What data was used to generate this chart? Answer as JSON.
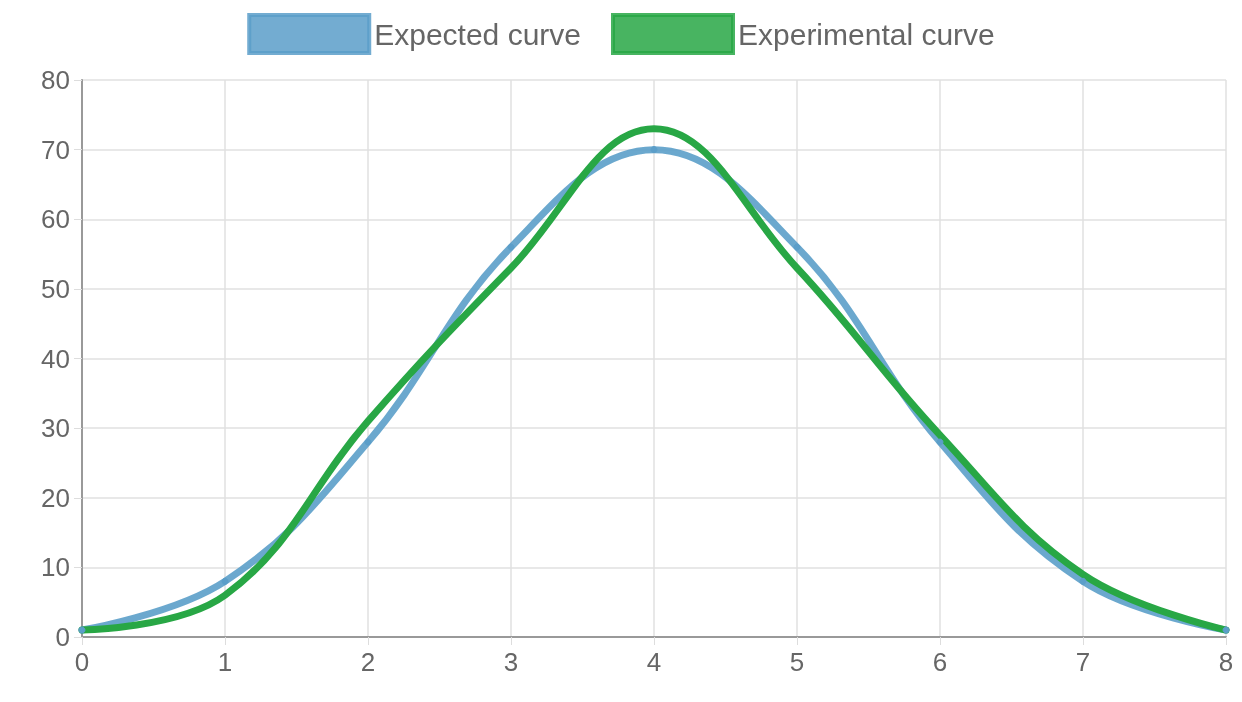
{
  "chart_data": {
    "type": "line",
    "x": [
      0,
      1,
      2,
      3,
      4,
      5,
      6,
      7,
      8
    ],
    "series": [
      {
        "name": "Expected curve",
        "color": "#5b9ec9",
        "values": [
          1,
          8,
          28,
          56,
          70,
          56,
          28,
          8,
          1
        ],
        "marker": "circle"
      },
      {
        "name": "Experimental curve",
        "color": "#28a745",
        "values": [
          1,
          6,
          31,
          53,
          73,
          53,
          29,
          9,
          1
        ],
        "marker": "none"
      }
    ],
    "xlim": [
      0,
      8
    ],
    "xticks": [
      0,
      1,
      2,
      3,
      4,
      5,
      6,
      7,
      8
    ],
    "ylim": [
      0,
      80
    ],
    "yticks": [
      0,
      10,
      20,
      30,
      40,
      50,
      60,
      70,
      80
    ],
    "grid": true,
    "legend": "top",
    "line_style": "solid"
  }
}
